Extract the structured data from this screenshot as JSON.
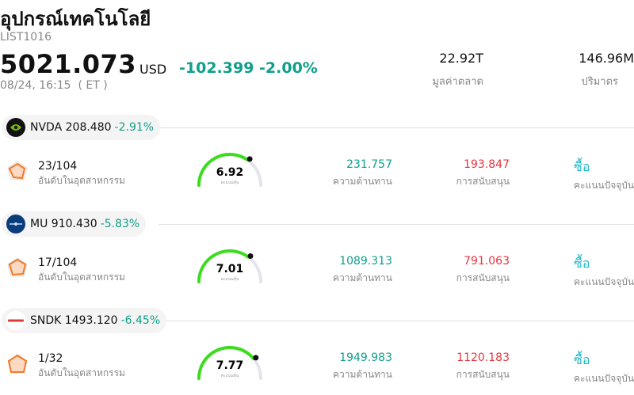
{
  "header": {
    "title": "อุปกรณ์เทคโนโลยี",
    "code": "LIST1016",
    "price": "5021.073",
    "currency": "USD",
    "change": "-102.399 -2.00%",
    "time": "08/24, 16:15  ( ET )",
    "market_cap_value": "22.92T",
    "market_cap_label": "มูลค่าตลาด",
    "volume_value": "146.96M",
    "volume_label": "ปริมาตร"
  },
  "colors": {
    "up_green": "#0f9f8a",
    "down_red": "#e5343d",
    "buy_cyan": "#1fb8c9",
    "gauge_green": "#3ddc1f"
  },
  "labels": {
    "rank": "อันดับในอุตสาหกรรม",
    "resistance": "ความต้านทาน",
    "support": "การสนับสนุน",
    "current_score": "คะแนนปัจจุบัน",
    "gauge_caption": "คะแนนหุ้น"
  },
  "stocks": [
    {
      "ticker": "NVDA",
      "price": "208.480",
      "pct": "-2.91%",
      "logo": "nvidia-logo",
      "rank": "23/104",
      "score": "6.92",
      "score_value": 6.92,
      "resistance": "231.757",
      "support": "193.847",
      "action": "ซื้อ"
    },
    {
      "ticker": "MU",
      "price": "910.430",
      "pct": "-5.83%",
      "logo": "micron-logo",
      "rank": "17/104",
      "score": "7.01",
      "score_value": 7.01,
      "resistance": "1089.313",
      "support": "791.063",
      "action": "ซื้อ"
    },
    {
      "ticker": "SNDK",
      "price": "1493.120",
      "pct": "-6.45%",
      "logo": "sandisk-logo",
      "rank": "1/32",
      "score": "7.77",
      "score_value": 7.77,
      "resistance": "1949.983",
      "support": "1120.183",
      "action": "ซื้อ"
    }
  ]
}
